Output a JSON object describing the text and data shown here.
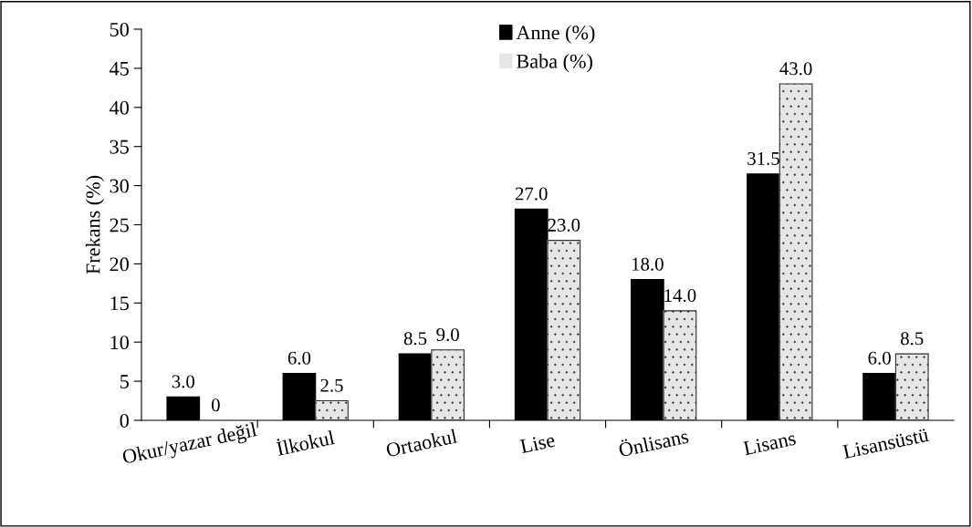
{
  "chart_data": {
    "type": "bar",
    "ylabel": "Frekans (%)",
    "categories": [
      "Okur/yazar değil",
      "İlkokul",
      "Ortaokul",
      "Lise",
      "Önlisans",
      "Lisans",
      "Lisansüstü"
    ],
    "series": [
      {
        "name": "Anne (%)",
        "color": "#000000",
        "values": [
          3.0,
          6.0,
          8.5,
          27.0,
          18.0,
          31.5,
          6.0
        ],
        "value_labels": [
          "3.0",
          "6.0",
          "8.5",
          "27.0",
          "18.0",
          "31.5",
          "6.0"
        ]
      },
      {
        "name": "Baba (%)",
        "color": "#e6e6e6",
        "values": [
          0,
          2.5,
          9.0,
          23.0,
          14.0,
          43.0,
          8.5
        ],
        "value_labels": [
          "0",
          "2.5",
          "9.0",
          "23.0",
          "14.0",
          "43.0",
          "8.5"
        ]
      }
    ],
    "ylim": [
      0,
      50
    ],
    "yticks": [
      0,
      5,
      10,
      15,
      20,
      25,
      30,
      35,
      40,
      45,
      50
    ],
    "grid": false,
    "legend": "top"
  }
}
